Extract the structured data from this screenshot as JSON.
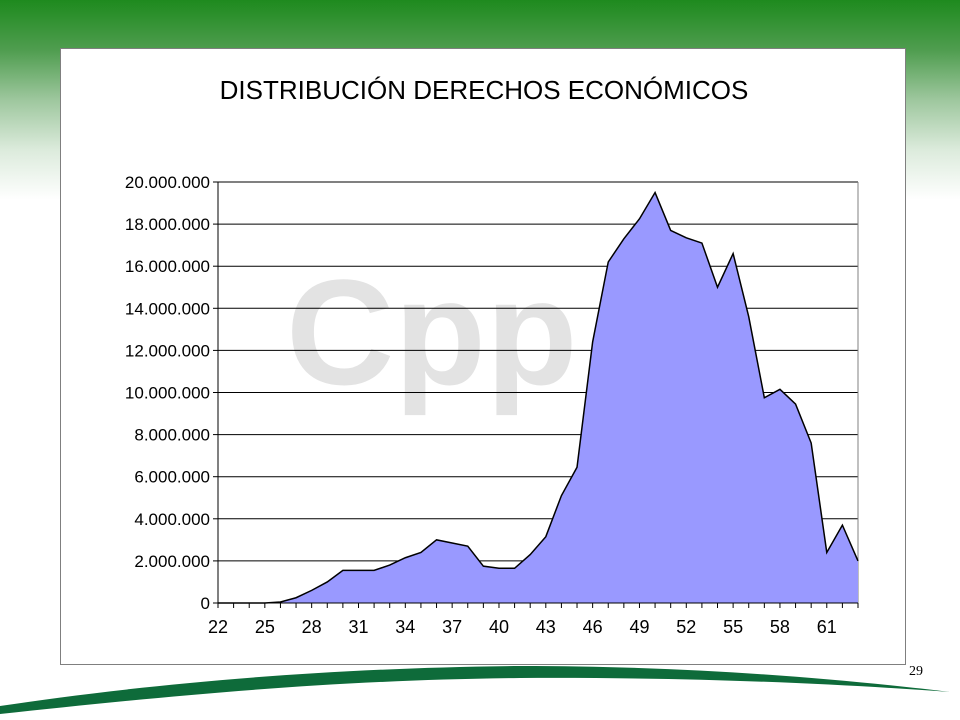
{
  "page": {
    "number": "29"
  },
  "colors": {
    "fill": "#9999ff",
    "stroke": "#000000",
    "grid": "#000000",
    "watermark": "#e3e3e3",
    "swoosh": "#0e6b3a"
  },
  "watermark": {
    "text": "Cpp"
  },
  "chart_data": {
    "type": "area",
    "title": "DISTRIBUCIÓN DERECHOS ECONÓMICOS",
    "xlabel": "",
    "ylabel": "",
    "ylim": [
      0,
      20000000
    ],
    "yticks": [
      0,
      2000000,
      4000000,
      6000000,
      8000000,
      10000000,
      12000000,
      14000000,
      16000000,
      18000000,
      20000000
    ],
    "ytick_labels": [
      "0",
      "2.000.000",
      "4.000.000",
      "6.000.000",
      "8.000.000",
      "10.000.000",
      "12.000.000",
      "14.000.000",
      "16.000.000",
      "18.000.000",
      "20.000.000"
    ],
    "xtick_labels": [
      "22",
      "25",
      "28",
      "31",
      "34",
      "37",
      "40",
      "43",
      "46",
      "49",
      "52",
      "55",
      "58",
      "61"
    ],
    "grid": true,
    "legend": "none",
    "x": [
      22,
      23,
      24,
      25,
      26,
      27,
      28,
      29,
      30,
      31,
      32,
      33,
      34,
      35,
      36,
      37,
      38,
      39,
      40,
      41,
      42,
      43,
      44,
      45,
      46,
      47,
      48,
      49,
      50,
      51,
      52,
      53,
      54,
      55,
      56,
      57,
      58,
      59,
      60,
      61,
      62,
      63
    ],
    "values": [
      0,
      0,
      0,
      0,
      50000,
      250000,
      600000,
      1000000,
      1550000,
      1550000,
      1550000,
      1800000,
      2150000,
      2400000,
      3000000,
      2850000,
      2700000,
      1750000,
      1650000,
      1650000,
      2300000,
      3150000,
      5100000,
      6450000,
      12400000,
      16200000,
      17300000,
      18250000,
      19500000,
      17700000,
      17350000,
      17100000,
      15000000,
      16600000,
      13600000,
      9750000,
      10150000,
      9450000,
      7600000,
      2400000,
      3700000,
      2000000
    ]
  }
}
